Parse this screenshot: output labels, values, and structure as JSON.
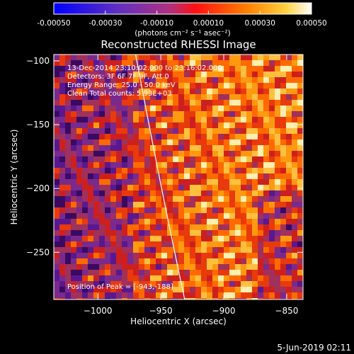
{
  "colorbar": {
    "tick_labels": [
      "-0.00050",
      "-0.00030",
      "-0.00010",
      "0.00010",
      "0.00030",
      "0.00050"
    ],
    "tick_values": [
      -0.0005,
      -0.0003,
      -0.0001,
      0.0001,
      0.0003,
      0.0005
    ],
    "range": [
      -0.0005,
      0.0005
    ],
    "unit_label": "(photons cm⁻² s⁻¹ asec⁻²)"
  },
  "chart_data": {
    "type": "heatmap",
    "title": "Reconstructed RHESSI Image",
    "xlabel": "Heliocentric X (arcsec)",
    "ylabel": "Heliocentric Y (arcsec)",
    "xlim": [
      -1035,
      -837
    ],
    "ylim": [
      -287,
      -95
    ],
    "x_ticks": [
      -1000,
      -950,
      -900,
      -850
    ],
    "x_tick_labels": [
      "−1000",
      "−950",
      "−900",
      "−850"
    ],
    "y_ticks": [
      -100,
      -150,
      -200,
      -250
    ],
    "y_tick_labels": [
      "−100",
      "−150",
      "−200",
      "−250"
    ],
    "info_lines": [
      "13-Dec-2014 23:10:02.000 to 23:16:02.000",
      "Detectors: 3F 6F 7F 9F, Att 0",
      "Energy Range: 25.0 - 50.0 keV",
      "Clean    Total counts: 5.93E+03"
    ],
    "peak_text": "Position of Peak = [-943,-188]",
    "peak": [
      -943,
      -188
    ],
    "limb_points": [
      [
        -970,
        -95
      ],
      [
        -950,
        -200
      ],
      [
        -931,
        -287
      ]
    ]
  },
  "footer": {
    "date": "5-Jun-2019 02:11"
  }
}
